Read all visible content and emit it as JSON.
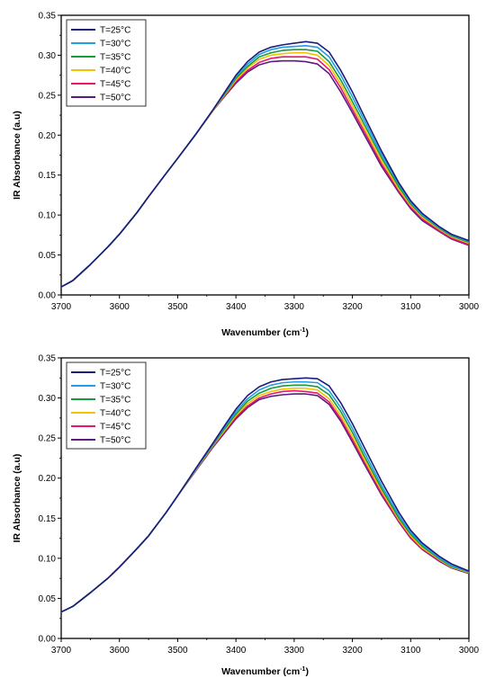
{
  "chart_data": [
    {
      "type": "line",
      "title": "",
      "xlabel": "Wavenumber (cm",
      "xlabel_sup": "-1",
      "xlabel_close": ")",
      "ylabel": "IR Absorbance (a.u)",
      "xlim": [
        3700,
        3000
      ],
      "ylim": [
        0,
        0.35
      ],
      "x_reversed": true,
      "grid": false,
      "legend_position": "top-left",
      "x_ticks": [
        "3700",
        "3600",
        "3500",
        "3400",
        "3300",
        "3200",
        "3100",
        "3000"
      ],
      "y_ticks": [
        "0.00",
        "0.05",
        "0.10",
        "0.15",
        "0.20",
        "0.25",
        "0.30",
        "0.35"
      ],
      "x": [
        3700,
        3680,
        3650,
        3620,
        3600,
        3570,
        3550,
        3520,
        3500,
        3470,
        3440,
        3420,
        3400,
        3380,
        3360,
        3340,
        3320,
        3300,
        3280,
        3260,
        3240,
        3220,
        3200,
        3180,
        3150,
        3120,
        3100,
        3080,
        3050,
        3030,
        3000
      ],
      "series": [
        {
          "name": "T=25°C",
          "color": "#1c1c7a",
          "values": [
            0.01,
            0.018,
            0.038,
            0.06,
            0.076,
            0.103,
            0.123,
            0.152,
            0.171,
            0.2,
            0.231,
            0.253,
            0.275,
            0.292,
            0.304,
            0.31,
            0.313,
            0.315,
            0.317,
            0.315,
            0.304,
            0.281,
            0.254,
            0.224,
            0.18,
            0.14,
            0.118,
            0.102,
            0.085,
            0.076,
            0.068
          ]
        },
        {
          "name": "T=30°C",
          "color": "#1f9ee6",
          "values": [
            0.01,
            0.018,
            0.038,
            0.06,
            0.076,
            0.103,
            0.123,
            0.152,
            0.171,
            0.2,
            0.231,
            0.252,
            0.273,
            0.289,
            0.301,
            0.307,
            0.31,
            0.311,
            0.312,
            0.31,
            0.298,
            0.275,
            0.248,
            0.219,
            0.176,
            0.138,
            0.116,
            0.1,
            0.084,
            0.075,
            0.067
          ]
        },
        {
          "name": "T=35°C",
          "color": "#1a9a3c",
          "values": [
            0.01,
            0.018,
            0.038,
            0.06,
            0.076,
            0.103,
            0.123,
            0.152,
            0.171,
            0.2,
            0.231,
            0.251,
            0.271,
            0.286,
            0.298,
            0.303,
            0.306,
            0.307,
            0.307,
            0.305,
            0.292,
            0.269,
            0.242,
            0.214,
            0.172,
            0.135,
            0.114,
            0.099,
            0.083,
            0.074,
            0.066
          ]
        },
        {
          "name": "T=40°C",
          "color": "#f2c200",
          "values": [
            0.01,
            0.018,
            0.038,
            0.06,
            0.076,
            0.103,
            0.123,
            0.152,
            0.171,
            0.2,
            0.23,
            0.25,
            0.269,
            0.284,
            0.295,
            0.3,
            0.302,
            0.303,
            0.303,
            0.3,
            0.287,
            0.264,
            0.237,
            0.209,
            0.168,
            0.132,
            0.112,
            0.097,
            0.082,
            0.073,
            0.065
          ]
        },
        {
          "name": "T=45°C",
          "color": "#e5176e",
          "values": [
            0.01,
            0.018,
            0.038,
            0.06,
            0.076,
            0.103,
            0.123,
            0.152,
            0.171,
            0.2,
            0.23,
            0.249,
            0.267,
            0.281,
            0.291,
            0.296,
            0.298,
            0.298,
            0.298,
            0.295,
            0.282,
            0.259,
            0.232,
            0.205,
            0.164,
            0.13,
            0.11,
            0.095,
            0.08,
            0.071,
            0.063
          ]
        },
        {
          "name": "T=50°C",
          "color": "#5c1b7e",
          "values": [
            0.01,
            0.018,
            0.038,
            0.06,
            0.076,
            0.103,
            0.123,
            0.152,
            0.171,
            0.2,
            0.23,
            0.248,
            0.265,
            0.279,
            0.288,
            0.292,
            0.293,
            0.293,
            0.292,
            0.289,
            0.277,
            0.254,
            0.228,
            0.201,
            0.161,
            0.128,
            0.108,
            0.093,
            0.079,
            0.07,
            0.062
          ]
        }
      ]
    },
    {
      "type": "line",
      "title": "",
      "xlabel": "Wavenumber (cm",
      "xlabel_sup": "-1",
      "xlabel_close": ")",
      "ylabel": "IR Absorbance (a.u)",
      "xlim": [
        3700,
        3000
      ],
      "ylim": [
        0,
        0.35
      ],
      "x_reversed": true,
      "grid": false,
      "legend_position": "top-left",
      "x_ticks": [
        "3700",
        "3600",
        "3500",
        "3400",
        "3300",
        "3200",
        "3100",
        "3000"
      ],
      "y_ticks": [
        "0.00",
        "0.05",
        "0.10",
        "0.15",
        "0.20",
        "0.25",
        "0.30",
        "0.35"
      ],
      "x": [
        3700,
        3680,
        3650,
        3620,
        3600,
        3570,
        3550,
        3520,
        3500,
        3470,
        3440,
        3420,
        3400,
        3380,
        3360,
        3340,
        3320,
        3300,
        3280,
        3260,
        3240,
        3220,
        3200,
        3180,
        3150,
        3120,
        3100,
        3080,
        3050,
        3030,
        3000
      ],
      "series": [
        {
          "name": "T=25°C",
          "color": "#1c1c7a",
          "values": [
            0.033,
            0.04,
            0.057,
            0.075,
            0.089,
            0.112,
            0.128,
            0.157,
            0.178,
            0.211,
            0.243,
            0.265,
            0.286,
            0.303,
            0.314,
            0.32,
            0.323,
            0.324,
            0.325,
            0.324,
            0.315,
            0.294,
            0.268,
            0.239,
            0.196,
            0.157,
            0.135,
            0.119,
            0.102,
            0.093,
            0.084
          ]
        },
        {
          "name": "T=30°C",
          "color": "#1f9ee6",
          "values": [
            0.033,
            0.04,
            0.057,
            0.075,
            0.089,
            0.112,
            0.128,
            0.157,
            0.178,
            0.21,
            0.242,
            0.263,
            0.283,
            0.299,
            0.31,
            0.316,
            0.319,
            0.32,
            0.32,
            0.319,
            0.309,
            0.288,
            0.262,
            0.233,
            0.191,
            0.153,
            0.132,
            0.117,
            0.1,
            0.091,
            0.083
          ]
        },
        {
          "name": "T=35°C",
          "color": "#1a9a3c",
          "values": [
            0.033,
            0.04,
            0.057,
            0.075,
            0.089,
            0.112,
            0.128,
            0.157,
            0.178,
            0.21,
            0.241,
            0.261,
            0.28,
            0.296,
            0.306,
            0.312,
            0.315,
            0.316,
            0.316,
            0.314,
            0.304,
            0.283,
            0.257,
            0.228,
            0.187,
            0.15,
            0.13,
            0.115,
            0.099,
            0.09,
            0.083
          ]
        },
        {
          "name": "T=40°C",
          "color": "#f2c200",
          "values": [
            0.033,
            0.04,
            0.057,
            0.075,
            0.089,
            0.112,
            0.128,
            0.157,
            0.178,
            0.209,
            0.24,
            0.259,
            0.278,
            0.293,
            0.303,
            0.308,
            0.311,
            0.312,
            0.312,
            0.31,
            0.299,
            0.278,
            0.252,
            0.224,
            0.184,
            0.148,
            0.128,
            0.113,
            0.098,
            0.089,
            0.082
          ]
        },
        {
          "name": "T=45°C",
          "color": "#e5176e",
          "values": [
            0.033,
            0.04,
            0.057,
            0.075,
            0.089,
            0.112,
            0.128,
            0.157,
            0.178,
            0.209,
            0.239,
            0.258,
            0.276,
            0.29,
            0.3,
            0.305,
            0.308,
            0.309,
            0.308,
            0.306,
            0.295,
            0.274,
            0.248,
            0.221,
            0.181,
            0.146,
            0.126,
            0.112,
            0.097,
            0.089,
            0.082
          ]
        },
        {
          "name": "T=50°C",
          "color": "#5c1b7e",
          "values": [
            0.033,
            0.04,
            0.057,
            0.075,
            0.089,
            0.112,
            0.128,
            0.157,
            0.178,
            0.208,
            0.238,
            0.256,
            0.274,
            0.288,
            0.298,
            0.302,
            0.304,
            0.305,
            0.305,
            0.303,
            0.292,
            0.271,
            0.245,
            0.218,
            0.179,
            0.145,
            0.125,
            0.111,
            0.096,
            0.088,
            0.081
          ]
        }
      ]
    }
  ]
}
